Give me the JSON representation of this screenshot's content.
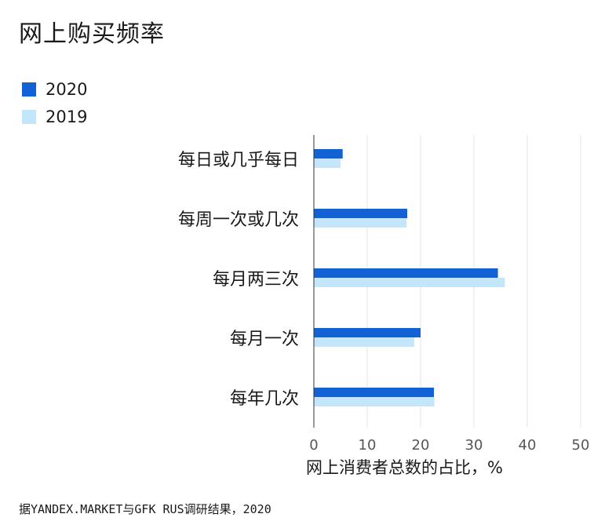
{
  "title": "网上购买频率",
  "source": "据YANDEX.MARKET与GFK RUS调研结果，2020",
  "legend": [
    {
      "label": "2020",
      "color": "#1262d6"
    },
    {
      "label": "2019",
      "color": "#c4e6fb"
    }
  ],
  "chart_data": {
    "type": "bar",
    "orientation": "horizontal",
    "categories": [
      "每日或几乎每日",
      "每周一次或几次",
      "每月两三次",
      "每月一次",
      "每年几次"
    ],
    "series": [
      {
        "name": "2020",
        "color": "#1262d6",
        "values": [
          5.4,
          17.5,
          34.5,
          20.0,
          22.5
        ]
      },
      {
        "name": "2019",
        "color": "#c4e6fb",
        "values": [
          5.0,
          17.4,
          35.8,
          18.8,
          22.6
        ]
      }
    ],
    "xlim": [
      0,
      50
    ],
    "xticks": [
      0,
      10,
      20,
      30,
      40,
      50
    ],
    "xlabel": "网上消费者总数的占比，%",
    "grid": true,
    "legend_position": "top-left"
  }
}
